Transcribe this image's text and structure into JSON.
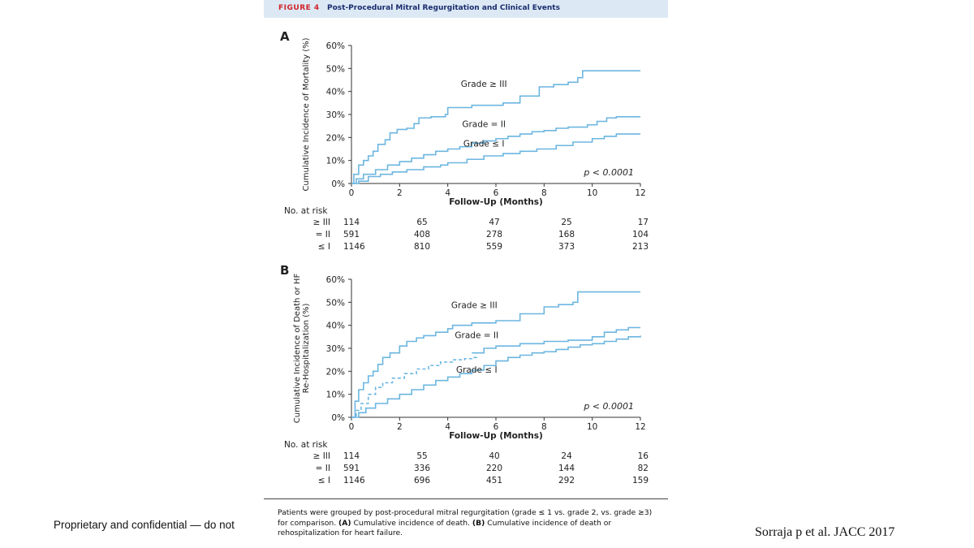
{
  "figure": {
    "number": "FIGURE 4",
    "title": "Post-Procedural Mitral Regurgitation and Clinical Events"
  },
  "caption": {
    "prefix": "Patients were grouped by post-procedural mitral regurgitation (grade ≤ 1 vs. grade 2, vs. grade ≥3) for comparison.",
    "a_label": "(A)",
    "a_text": "Cumulative incidence of death.",
    "b_label": "(B)",
    "b_text": "Cumulative incidence of death or rehospitalization for heart failure."
  },
  "footer": {
    "left": "Proprietary and confidential — do not",
    "right": "Sorraja p et al. JACC 2017"
  },
  "colors": {
    "line": "#6cb6e0",
    "axis": "#333333",
    "header_bg": "#dce9f5",
    "figure_number": "#d2232a",
    "figure_title": "#1a2b6d"
  },
  "chart_data": [
    {
      "type": "line",
      "panel": "A",
      "xlabel": "Follow-Up (Months)",
      "ylabel": "Cumulative Incidence of Mortality (%)",
      "xlim": [
        0,
        12
      ],
      "ylim": [
        0,
        60
      ],
      "xticks": [
        0,
        2,
        4,
        6,
        8,
        10,
        12
      ],
      "xtick_labels": [
        "0",
        "2",
        "4",
        "6",
        "8",
        "10",
        "12"
      ],
      "yticks": [
        0,
        10,
        20,
        30,
        40,
        50,
        60
      ],
      "ytick_labels": [
        "0%",
        "10%",
        "20%",
        "30%",
        "40%",
        "50%",
        "60%"
      ],
      "pvalue": "p < 0.0001",
      "series": [
        {
          "name": "Grade ≥ III",
          "style": "solid",
          "label_at": [
            5.5,
            42
          ],
          "points": [
            [
              0,
              0
            ],
            [
              0.1,
              4
            ],
            [
              0.3,
              8
            ],
            [
              0.5,
              10
            ],
            [
              0.7,
              12
            ],
            [
              0.9,
              14
            ],
            [
              1.1,
              17
            ],
            [
              1.4,
              19
            ],
            [
              1.6,
              22
            ],
            [
              1.9,
              23.5
            ],
            [
              2.3,
              24
            ],
            [
              2.6,
              26
            ],
            [
              2.8,
              28.5
            ],
            [
              3.3,
              29
            ],
            [
              3.9,
              30
            ],
            [
              4.0,
              33
            ],
            [
              5.0,
              34
            ],
            [
              6.3,
              35
            ],
            [
              7.0,
              38
            ],
            [
              7.8,
              42
            ],
            [
              8.4,
              43
            ],
            [
              9.0,
              44
            ],
            [
              9.4,
              46
            ],
            [
              9.6,
              49
            ],
            [
              12,
              49
            ]
          ]
        },
        {
          "name": "Grade = II",
          "style": "solid",
          "label_at": [
            5.5,
            24.5
          ],
          "points": [
            [
              0,
              0
            ],
            [
              0.2,
              2
            ],
            [
              0.5,
              4
            ],
            [
              1,
              6
            ],
            [
              1.5,
              8
            ],
            [
              2,
              9.5
            ],
            [
              2.5,
              11
            ],
            [
              3,
              12.5
            ],
            [
              3.5,
              14
            ],
            [
              4,
              15
            ],
            [
              4.5,
              16
            ],
            [
              5,
              17.5
            ],
            [
              5.5,
              18.5
            ],
            [
              6,
              19.5
            ],
            [
              6.5,
              20.5
            ],
            [
              7,
              21.5
            ],
            [
              7.5,
              22.5
            ],
            [
              8,
              23
            ],
            [
              8.5,
              24
            ],
            [
              9,
              24.5
            ],
            [
              9.8,
              25.5
            ],
            [
              10.2,
              27
            ],
            [
              10.6,
              28.5
            ],
            [
              11,
              29
            ],
            [
              12,
              29
            ]
          ]
        },
        {
          "name": "Grade ≤ I",
          "style": "solid",
          "label_at": [
            5.5,
            16
          ],
          "points": [
            [
              0,
              0
            ],
            [
              0.3,
              1
            ],
            [
              0.7,
              3
            ],
            [
              1.2,
              4
            ],
            [
              1.7,
              5
            ],
            [
              2.3,
              6
            ],
            [
              3,
              7.2
            ],
            [
              3.7,
              8
            ],
            [
              4,
              9
            ],
            [
              4.8,
              10.5
            ],
            [
              5.5,
              12
            ],
            [
              6.3,
              13
            ],
            [
              7,
              14
            ],
            [
              7.7,
              15
            ],
            [
              8.5,
              16.5
            ],
            [
              9.2,
              18
            ],
            [
              10,
              19.5
            ],
            [
              10.5,
              20.5
            ],
            [
              11,
              21.5
            ],
            [
              12,
              21.5
            ]
          ]
        }
      ],
      "at_risk": {
        "label": "No. at risk",
        "rows": [
          {
            "name": "≥ III",
            "values": [
              "114",
              "65",
              "47",
              "25",
              "17"
            ]
          },
          {
            "name": "= II",
            "values": [
              "591",
              "408",
              "278",
              "168",
              "104"
            ]
          },
          {
            "name": "≤ I",
            "values": [
              "1146",
              "810",
              "559",
              "373",
              "213"
            ]
          }
        ]
      }
    },
    {
      "type": "line",
      "panel": "B",
      "xlabel": "Follow-Up (Months)",
      "ylabel": "Cumulative Incidence of Death or HF Re-Hospitalization (%)",
      "ylabel_lines": [
        "Cumulative Incidence of Death or HF",
        "Re-Hospitalization (%)"
      ],
      "xlim": [
        0,
        12
      ],
      "ylim": [
        0,
        60
      ],
      "xticks": [
        0,
        2,
        4,
        6,
        8,
        10,
        12
      ],
      "xtick_labels": [
        "0",
        "2",
        "4",
        "6",
        "8",
        "10",
        "12"
      ],
      "yticks": [
        0,
        10,
        20,
        30,
        40,
        50,
        60
      ],
      "ytick_labels": [
        "0%",
        "10%",
        "20%",
        "30%",
        "40%",
        "50%",
        "60%"
      ],
      "pvalue": "p < 0.0001",
      "series": [
        {
          "name": "Grade ≥ III",
          "style": "solid",
          "label_at": [
            5.1,
            47.5
          ],
          "points": [
            [
              0,
              0
            ],
            [
              0.15,
              7
            ],
            [
              0.3,
              12
            ],
            [
              0.5,
              15
            ],
            [
              0.7,
              18
            ],
            [
              0.9,
              20
            ],
            [
              1.1,
              23
            ],
            [
              1.3,
              26
            ],
            [
              1.6,
              28
            ],
            [
              2,
              31
            ],
            [
              2.3,
              33
            ],
            [
              2.7,
              34.5
            ],
            [
              3,
              35.5
            ],
            [
              3.5,
              37
            ],
            [
              4,
              38.5
            ],
            [
              4.2,
              40
            ],
            [
              5,
              41
            ],
            [
              6,
              42
            ],
            [
              7,
              45
            ],
            [
              8,
              48
            ],
            [
              8.6,
              49
            ],
            [
              9.2,
              50
            ],
            [
              9.4,
              54.5
            ],
            [
              12,
              54.5
            ]
          ]
        },
        {
          "name": "Grade = II",
          "style": "solid",
          "label_at": [
            5.2,
            34.5
          ],
          "points": [
            [
              5.0,
              28
            ],
            [
              5.5,
              30
            ],
            [
              6,
              31
            ],
            [
              7,
              32
            ],
            [
              8,
              33
            ],
            [
              9,
              33.5
            ],
            [
              10,
              35
            ],
            [
              10.5,
              37
            ],
            [
              11,
              38
            ],
            [
              11.5,
              39
            ],
            [
              12,
              39
            ]
          ]
        },
        {
          "name": "Grade = II",
          "style": "dashed",
          "points": [
            [
              0,
              0
            ],
            [
              0.2,
              3
            ],
            [
              0.4,
              6
            ],
            [
              0.7,
              10
            ],
            [
              1,
              13
            ],
            [
              1.3,
              15
            ],
            [
              1.7,
              17
            ],
            [
              2.2,
              19
            ],
            [
              2.7,
              21
            ],
            [
              3.2,
              22.5
            ],
            [
              3.7,
              24
            ],
            [
              4.2,
              25
            ],
            [
              4.7,
              25.5
            ],
            [
              5,
              26
            ],
            [
              5.2,
              27
            ]
          ]
        },
        {
          "name": "Grade ≤ I",
          "style": "solid",
          "label_at": [
            5.2,
            19.5
          ],
          "points": [
            [
              0,
              0
            ],
            [
              0.3,
              2
            ],
            [
              0.6,
              4
            ],
            [
              1,
              6
            ],
            [
              1.5,
              8
            ],
            [
              2,
              10
            ],
            [
              2.5,
              12
            ],
            [
              3,
              14
            ],
            [
              3.5,
              16
            ],
            [
              4,
              17.5
            ],
            [
              4.5,
              19
            ],
            [
              5,
              20.5
            ],
            [
              5.5,
              22.5
            ],
            [
              6,
              24.5
            ],
            [
              6.5,
              26
            ],
            [
              7,
              27
            ],
            [
              7.5,
              28
            ],
            [
              8,
              28.5
            ],
            [
              8.5,
              29.5
            ],
            [
              9,
              30.5
            ],
            [
              9.5,
              31.5
            ],
            [
              10,
              32
            ],
            [
              10.5,
              33
            ],
            [
              11,
              34
            ],
            [
              11.5,
              35
            ],
            [
              12,
              35.5
            ]
          ]
        }
      ],
      "at_risk": {
        "label": "No. at risk",
        "rows": [
          {
            "name": "≥ III",
            "values": [
              "114",
              "55",
              "40",
              "24",
              "16"
            ]
          },
          {
            "name": "= II",
            "values": [
              "591",
              "336",
              "220",
              "144",
              "82"
            ]
          },
          {
            "name": "≤ I",
            "values": [
              "1146",
              "696",
              "451",
              "292",
              "159"
            ]
          }
        ]
      }
    }
  ]
}
